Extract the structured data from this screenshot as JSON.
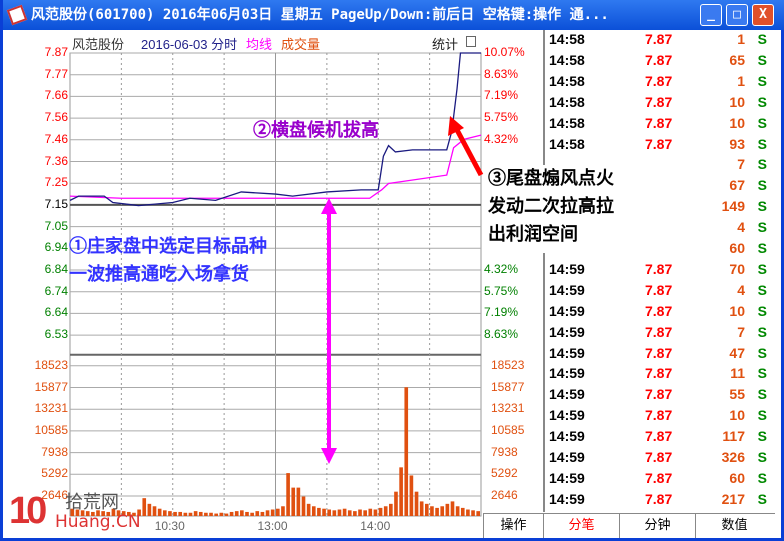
{
  "window": {
    "title": "风范股份(601700) 2016年06月03日 星期五 PageUp/Down:前后日 空格键:操作 通...",
    "minimize": "_",
    "maximize": "□",
    "close": "X"
  },
  "chart_header": {
    "name": "风范股份",
    "date": "2016-06-03 分时",
    "avg": "均线",
    "vol": "成交量",
    "stats": "统计"
  },
  "price_labels": [
    "7.87",
    "7.77",
    "7.66",
    "7.56",
    "7.46",
    "7.36",
    "7.25",
    "7.15",
    "7.05",
    "6.94",
    "6.84",
    "6.74",
    "6.64",
    "6.53"
  ],
  "pct_labels_top": [
    "10.07%",
    "8.63%",
    "7.19%",
    "5.75%",
    "4.32%"
  ],
  "pct_labels_bottom": [
    "4.32%",
    "5.75%",
    "7.19%",
    "8.63%"
  ],
  "vol_labels": [
    "18523",
    "15877",
    "13231",
    "10585",
    "7938",
    "5292",
    "2646"
  ],
  "time_labels": [
    "10:30",
    "13:00",
    "14:00"
  ],
  "colors": {
    "up": "#ff0000",
    "down": "#008000",
    "price_line": "#1a1a80",
    "avg_line": "#ff00ff",
    "volume": "#e05010",
    "annot_blue": "#3333ff",
    "annot_purple": "#9900cc"
  },
  "chart_data": {
    "type": "line",
    "prev_close": 7.15,
    "ylim": [
      6.53,
      7.87
    ],
    "price": [
      [
        "09:30",
        7.17
      ],
      [
        "09:35",
        7.19
      ],
      [
        "09:50",
        7.19
      ],
      [
        "09:55",
        7.16
      ],
      [
        "10:10",
        7.145
      ],
      [
        "10:30",
        7.16
      ],
      [
        "10:40",
        7.18
      ],
      [
        "10:55",
        7.17
      ],
      [
        "11:10",
        7.21
      ],
      [
        "11:30",
        7.2
      ],
      [
        "13:10",
        7.19
      ],
      [
        "13:30",
        7.21
      ],
      [
        "13:50",
        7.22
      ],
      [
        "14:00",
        7.22
      ],
      [
        "14:03",
        7.38
      ],
      [
        "14:06",
        7.43
      ],
      [
        "14:10",
        7.4
      ],
      [
        "14:20",
        7.41
      ],
      [
        "14:30",
        7.41
      ],
      [
        "14:40",
        7.41
      ],
      [
        "14:43",
        7.5
      ],
      [
        "14:46",
        7.7
      ],
      [
        "14:48",
        7.87
      ],
      [
        "15:00",
        7.87
      ]
    ],
    "avg": [
      [
        "09:30",
        7.19
      ],
      [
        "10:00",
        7.18
      ],
      [
        "11:30",
        7.18
      ],
      [
        "13:55",
        7.18
      ],
      [
        "14:02",
        7.22
      ],
      [
        "14:06",
        7.25
      ],
      [
        "14:40",
        7.29
      ],
      [
        "14:44",
        7.42
      ],
      [
        "14:50",
        7.46
      ],
      [
        "15:00",
        7.48
      ]
    ],
    "volume_every_3min": [
      900,
      800,
      700,
      600,
      500,
      700,
      600,
      500,
      900,
      700,
      600,
      500,
      400,
      800,
      2200,
      1500,
      1200,
      900,
      700,
      600,
      500,
      500,
      400,
      400,
      600,
      500,
      400,
      400,
      300,
      400,
      300,
      500,
      600,
      700,
      500,
      400,
      600,
      500,
      700,
      800,
      900,
      1200,
      5292,
      3500,
      3500,
      2400,
      1500,
      1200,
      1000,
      900,
      800,
      700,
      800,
      900,
      700,
      600,
      800,
      700,
      900,
      800,
      1000,
      1200,
      1500,
      3000,
      6000,
      15877,
      5000,
      3000,
      1800,
      1500,
      1200,
      1000,
      1200,
      1500,
      1800,
      1200,
      1000,
      800,
      700,
      600
    ]
  },
  "annotations": {
    "a1": [
      "①庄家盘中选定目标品种",
      "一波推高通吃入场拿货"
    ],
    "a2": "②横盘候机拔高",
    "a3": [
      "③尾盘煽风点火",
      "发动二次拉高拉",
      "出利润空间"
    ]
  },
  "trades": [
    [
      "14:58",
      "7.87",
      "1",
      "S"
    ],
    [
      "14:58",
      "7.87",
      "65",
      "S"
    ],
    [
      "14:58",
      "7.87",
      "1",
      "S"
    ],
    [
      "14:58",
      "7.87",
      "10",
      "S"
    ],
    [
      "14:58",
      "7.87",
      "10",
      "S"
    ],
    [
      "14:58",
      "7.87",
      "93",
      "S"
    ],
    [
      "",
      "",
      "7",
      "S"
    ],
    [
      "",
      "",
      "67",
      "S"
    ],
    [
      "",
      "",
      "149",
      "S"
    ],
    [
      "",
      "",
      "4",
      "S"
    ],
    [
      "",
      "",
      "60",
      "S"
    ],
    [
      "14:59",
      "7.87",
      "70",
      "S"
    ],
    [
      "14:59",
      "7.87",
      "4",
      "S"
    ],
    [
      "14:59",
      "7.87",
      "10",
      "S"
    ],
    [
      "14:59",
      "7.87",
      "7",
      "S"
    ],
    [
      "14:59",
      "7.87",
      "47",
      "S"
    ],
    [
      "14:59",
      "7.87",
      "11",
      "S"
    ],
    [
      "14:59",
      "7.87",
      "55",
      "S"
    ],
    [
      "14:59",
      "7.87",
      "10",
      "S"
    ],
    [
      "14:59",
      "7.87",
      "117",
      "S"
    ],
    [
      "14:59",
      "7.87",
      "326",
      "S"
    ],
    [
      "14:59",
      "7.87",
      "60",
      "S"
    ],
    [
      "14:59",
      "7.87",
      "217",
      "S"
    ]
  ],
  "tabs": {
    "op": "操作",
    "items": [
      "分笔",
      "分钟",
      "数值"
    ]
  },
  "logo": {
    "text": "拾荒网",
    "domain": "Huang.CN"
  }
}
